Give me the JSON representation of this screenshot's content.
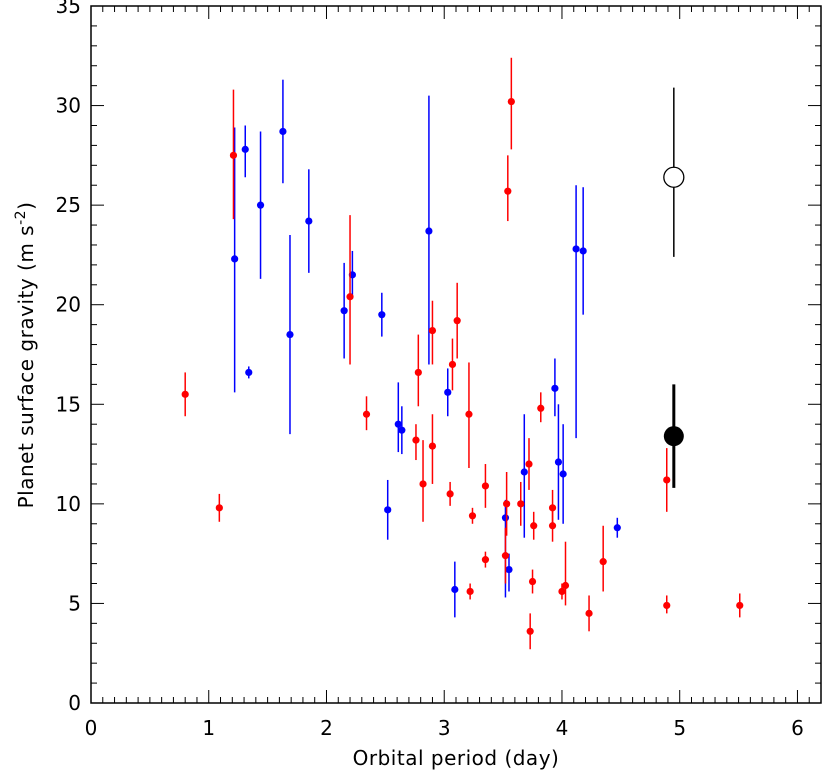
{
  "chart_data": {
    "type": "scatter",
    "xlabel": "Orbital period  (day)",
    "ylabel_prefix": "Planet surface gravity  (m s",
    "ylabel_sup": "-2",
    "ylabel_suffix": ")",
    "xlim": [
      0,
      6.2
    ],
    "ylim": [
      0,
      35
    ],
    "xticks": [
      0,
      1,
      2,
      3,
      4,
      5,
      6
    ],
    "yticks": [
      0,
      5,
      10,
      15,
      20,
      25,
      30,
      35
    ],
    "grid": false,
    "colors": {
      "red": "#ff0000",
      "blue": "#0000ff",
      "black": "#000000"
    },
    "series": [
      {
        "color": "blue",
        "points": [
          {
            "x": 1.22,
            "y": 22.3,
            "lo": 15.6,
            "hi": 28.9
          },
          {
            "x": 1.31,
            "y": 27.8,
            "lo": 26.4,
            "hi": 29.0
          },
          {
            "x": 1.34,
            "y": 16.6,
            "lo": 16.3,
            "hi": 16.9
          },
          {
            "x": 1.44,
            "y": 25.0,
            "lo": 21.3,
            "hi": 28.7
          },
          {
            "x": 1.63,
            "y": 28.7,
            "lo": 26.1,
            "hi": 31.3
          },
          {
            "x": 1.69,
            "y": 18.5,
            "lo": 13.5,
            "hi": 23.5
          },
          {
            "x": 1.85,
            "y": 24.2,
            "lo": 21.6,
            "hi": 26.8
          },
          {
            "x": 2.15,
            "y": 19.7,
            "lo": 17.3,
            "hi": 22.1
          },
          {
            "x": 2.22,
            "y": 21.5,
            "lo": 20.3,
            "hi": 22.7
          },
          {
            "x": 2.47,
            "y": 19.5,
            "lo": 18.4,
            "hi": 20.6
          },
          {
            "x": 2.52,
            "y": 9.7,
            "lo": 8.2,
            "hi": 11.2
          },
          {
            "x": 2.61,
            "y": 14.0,
            "lo": 12.6,
            "hi": 16.1
          },
          {
            "x": 2.64,
            "y": 13.7,
            "lo": 12.5,
            "hi": 14.9
          },
          {
            "x": 2.87,
            "y": 23.7,
            "lo": 17.0,
            "hi": 30.5
          },
          {
            "x": 3.03,
            "y": 15.6,
            "lo": 14.4,
            "hi": 16.8
          },
          {
            "x": 3.09,
            "y": 5.7,
            "lo": 4.3,
            "hi": 7.1
          },
          {
            "x": 3.52,
            "y": 9.3,
            "lo": 5.3,
            "hi": 10.2
          },
          {
            "x": 3.55,
            "y": 6.7,
            "lo": 5.6,
            "hi": 7.5
          },
          {
            "x": 3.68,
            "y": 11.6,
            "lo": 8.3,
            "hi": 14.5
          },
          {
            "x": 3.94,
            "y": 15.8,
            "lo": 14.4,
            "hi": 17.3
          },
          {
            "x": 3.97,
            "y": 12.1,
            "lo": 9.2,
            "hi": 15.0
          },
          {
            "x": 4.01,
            "y": 11.5,
            "lo": 9.0,
            "hi": 14.0
          },
          {
            "x": 4.12,
            "y": 22.8,
            "lo": 13.3,
            "hi": 26.0
          },
          {
            "x": 4.18,
            "y": 22.7,
            "lo": 19.5,
            "hi": 25.9
          },
          {
            "x": 4.47,
            "y": 8.8,
            "lo": 8.3,
            "hi": 9.3
          }
        ]
      },
      {
        "color": "red",
        "points": [
          {
            "x": 0.8,
            "y": 15.5,
            "lo": 14.4,
            "hi": 16.6
          },
          {
            "x": 1.09,
            "y": 9.8,
            "lo": 9.1,
            "hi": 10.5
          },
          {
            "x": 1.21,
            "y": 27.5,
            "lo": 24.3,
            "hi": 30.8
          },
          {
            "x": 2.2,
            "y": 20.4,
            "lo": 17.0,
            "hi": 24.5
          },
          {
            "x": 2.34,
            "y": 14.5,
            "lo": 13.7,
            "hi": 15.4
          },
          {
            "x": 2.76,
            "y": 13.2,
            "lo": 12.2,
            "hi": 14.0
          },
          {
            "x": 2.78,
            "y": 16.6,
            "lo": 14.9,
            "hi": 18.5
          },
          {
            "x": 2.82,
            "y": 11.0,
            "lo": 9.1,
            "hi": 13.2
          },
          {
            "x": 2.9,
            "y": 12.9,
            "lo": 11.0,
            "hi": 14.5
          },
          {
            "x": 2.9,
            "y": 18.7,
            "lo": 17.0,
            "hi": 20.2
          },
          {
            "x": 3.05,
            "y": 10.5,
            "lo": 9.9,
            "hi": 11.1
          },
          {
            "x": 3.07,
            "y": 17.0,
            "lo": 15.7,
            "hi": 18.3
          },
          {
            "x": 3.11,
            "y": 19.2,
            "lo": 17.3,
            "hi": 21.1
          },
          {
            "x": 3.21,
            "y": 14.5,
            "lo": 11.8,
            "hi": 17.1
          },
          {
            "x": 3.22,
            "y": 5.6,
            "lo": 5.2,
            "hi": 6.0
          },
          {
            "x": 3.24,
            "y": 9.4,
            "lo": 9.0,
            "hi": 9.8
          },
          {
            "x": 3.35,
            "y": 10.9,
            "lo": 9.8,
            "hi": 12.0
          },
          {
            "x": 3.35,
            "y": 7.2,
            "lo": 6.8,
            "hi": 7.6
          },
          {
            "x": 3.52,
            "y": 7.4,
            "lo": 6.0,
            "hi": 8.8
          },
          {
            "x": 3.53,
            "y": 10.0,
            "lo": 8.4,
            "hi": 11.6
          },
          {
            "x": 3.54,
            "y": 25.7,
            "lo": 24.2,
            "hi": 27.5
          },
          {
            "x": 3.57,
            "y": 30.2,
            "lo": 27.8,
            "hi": 32.4
          },
          {
            "x": 3.65,
            "y": 10.0,
            "lo": 8.9,
            "hi": 11.1
          },
          {
            "x": 3.72,
            "y": 12.0,
            "lo": 10.7,
            "hi": 13.3
          },
          {
            "x": 3.73,
            "y": 3.6,
            "lo": 2.7,
            "hi": 4.5
          },
          {
            "x": 3.75,
            "y": 6.1,
            "lo": 5.5,
            "hi": 6.7
          },
          {
            "x": 3.76,
            "y": 8.9,
            "lo": 8.2,
            "hi": 9.6
          },
          {
            "x": 3.82,
            "y": 14.8,
            "lo": 14.1,
            "hi": 15.6
          },
          {
            "x": 3.92,
            "y": 9.8,
            "lo": 8.9,
            "hi": 10.7
          },
          {
            "x": 3.92,
            "y": 8.9,
            "lo": 8.1,
            "hi": 9.7
          },
          {
            "x": 4.0,
            "y": 5.6,
            "lo": 5.2,
            "hi": 6.0
          },
          {
            "x": 4.03,
            "y": 5.9,
            "lo": 4.9,
            "hi": 8.1
          },
          {
            "x": 4.23,
            "y": 4.5,
            "lo": 3.6,
            "hi": 5.4
          },
          {
            "x": 4.35,
            "y": 7.1,
            "lo": 5.6,
            "hi": 8.9
          },
          {
            "x": 4.89,
            "y": 11.2,
            "lo": 9.6,
            "hi": 12.8
          },
          {
            "x": 4.89,
            "y": 4.9,
            "lo": 4.5,
            "hi": 5.4
          },
          {
            "x": 5.51,
            "y": 4.9,
            "lo": 4.3,
            "hi": 5.5
          }
        ]
      },
      {
        "color": "black",
        "marker": "open-circle",
        "points": [
          {
            "x": 4.95,
            "y": 26.4,
            "lo": 22.4,
            "hi": 30.9
          }
        ]
      },
      {
        "color": "black",
        "marker": "filled-circle",
        "points": [
          {
            "x": 4.95,
            "y": 13.4,
            "lo": 10.8,
            "hi": 16.0
          }
        ]
      }
    ]
  }
}
